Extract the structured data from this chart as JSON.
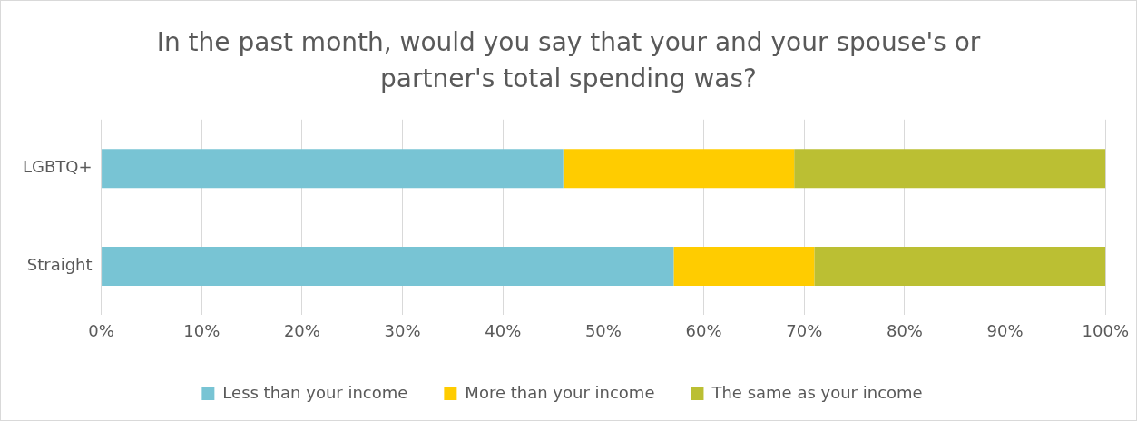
{
  "chart_data": {
    "type": "bar",
    "title": "In the past month, would you say that your and your spouse's or partner's total spending was?",
    "orientation": "horizontal",
    "stacked": true,
    "categories": [
      "LGBTQ+",
      "Straight"
    ],
    "series": [
      {
        "name": "Less than your income",
        "color": "#78c4d4",
        "values": [
          46,
          57
        ]
      },
      {
        "name": "More than your income",
        "color": "#ffcc00",
        "values": [
          23,
          14
        ]
      },
      {
        "name": "The same as your income",
        "color": "#bbbf33",
        "values": [
          31,
          29
        ]
      }
    ],
    "xlim": [
      0,
      100
    ],
    "xticks": [
      {
        "value": 0,
        "label": "0%"
      },
      {
        "value": 10,
        "label": "10%"
      },
      {
        "value": 20,
        "label": "20%"
      },
      {
        "value": 30,
        "label": "30%"
      },
      {
        "value": 40,
        "label": "40%"
      },
      {
        "value": 50,
        "label": "50%"
      },
      {
        "value": 60,
        "label": "60%"
      },
      {
        "value": 70,
        "label": "70%"
      },
      {
        "value": 80,
        "label": "80%"
      },
      {
        "value": 90,
        "label": "90%"
      },
      {
        "value": 100,
        "label": "100%"
      }
    ],
    "grid": "x",
    "legend": "bottom"
  }
}
